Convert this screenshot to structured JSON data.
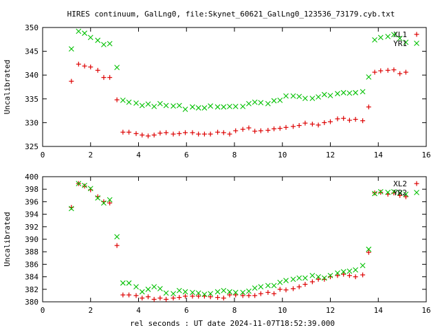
{
  "title": "HIRES continuum, GalLng0, file:Skynet_60621_GalLng0_123536_73179.cyb.txt",
  "xlabel": "rel seconds : UT date 2024-11-07T18:52:39.000",
  "colors": {
    "red": "#dd0000",
    "green": "#00c000"
  },
  "chart_data": [
    {
      "type": "scatter",
      "ylabel": "Uncalibrated",
      "xlim": [
        0,
        16
      ],
      "ylim": [
        325,
        350
      ],
      "xticks": [
        0,
        2,
        4,
        6,
        8,
        10,
        12,
        14,
        16
      ],
      "yticks": [
        325,
        330,
        335,
        340,
        345,
        350
      ],
      "legend_position": "top-right",
      "series": [
        {
          "name": "XL1",
          "marker": "plus",
          "color": "#dd0000",
          "x": [
            1.2,
            1.5,
            1.75,
            2.0,
            2.3,
            2.55,
            2.8,
            3.1,
            3.35,
            3.6,
            3.9,
            4.15,
            4.4,
            4.65,
            4.9,
            5.15,
            5.45,
            5.7,
            5.95,
            6.25,
            6.5,
            6.75,
            7.0,
            7.3,
            7.55,
            7.8,
            8.05,
            8.35,
            8.6,
            8.85,
            9.1,
            9.4,
            9.65,
            9.9,
            10.15,
            10.45,
            10.7,
            10.95,
            11.25,
            11.5,
            11.75,
            12.0,
            12.3,
            12.55,
            12.8,
            13.05,
            13.35,
            13.6,
            13.85,
            14.1,
            14.4,
            14.65,
            14.9,
            15.15
          ],
          "y": [
            338.7,
            342.3,
            341.9,
            341.7,
            341.0,
            339.5,
            339.5,
            334.8,
            328.0,
            328.0,
            327.7,
            327.4,
            327.2,
            327.4,
            327.8,
            327.9,
            327.6,
            327.7,
            327.9,
            327.9,
            327.6,
            327.6,
            327.6,
            328.0,
            327.9,
            327.6,
            328.3,
            328.6,
            328.9,
            328.2,
            328.3,
            328.4,
            328.7,
            328.8,
            329.0,
            329.2,
            329.4,
            329.9,
            329.7,
            329.5,
            330.0,
            330.2,
            330.8,
            330.9,
            330.5,
            330.7,
            330.4,
            333.3,
            340.6,
            340.9,
            341.0,
            341.1,
            340.3,
            340.6
          ]
        },
        {
          "name": "YR1",
          "marker": "cross",
          "color": "#00c000",
          "x": [
            1.2,
            1.5,
            1.75,
            2.0,
            2.3,
            2.55,
            2.8,
            3.1,
            3.35,
            3.6,
            3.9,
            4.15,
            4.4,
            4.65,
            4.9,
            5.15,
            5.45,
            5.7,
            5.95,
            6.25,
            6.5,
            6.75,
            7.0,
            7.3,
            7.55,
            7.8,
            8.05,
            8.35,
            8.6,
            8.85,
            9.1,
            9.4,
            9.65,
            9.9,
            10.15,
            10.45,
            10.7,
            10.95,
            11.25,
            11.5,
            11.75,
            12.0,
            12.3,
            12.55,
            12.8,
            13.05,
            13.35,
            13.6,
            13.85,
            14.1,
            14.4,
            14.65,
            14.9,
            15.15
          ],
          "y": [
            345.5,
            349.2,
            348.8,
            347.9,
            347.3,
            346.4,
            346.6,
            341.6,
            334.7,
            334.3,
            334.1,
            333.6,
            333.9,
            333.4,
            334.0,
            333.6,
            333.5,
            333.6,
            332.8,
            333.3,
            333.1,
            333.1,
            333.5,
            333.3,
            333.3,
            333.4,
            333.4,
            333.4,
            334.0,
            334.3,
            334.2,
            334.0,
            334.6,
            334.7,
            335.6,
            335.6,
            335.5,
            335.1,
            335.1,
            335.4,
            335.9,
            335.7,
            336.1,
            336.3,
            336.2,
            336.3,
            336.5,
            339.6,
            347.4,
            347.9,
            348.1,
            348.5,
            347.7,
            346.9
          ]
        }
      ]
    },
    {
      "type": "scatter",
      "ylabel": "Uncalibrated",
      "xlim": [
        0,
        16
      ],
      "ylim": [
        380,
        400
      ],
      "xticks": [
        0,
        2,
        4,
        6,
        8,
        10,
        12,
        14,
        16
      ],
      "yticks": [
        380,
        382,
        384,
        386,
        388,
        390,
        392,
        394,
        396,
        398,
        400
      ],
      "legend_position": "top-right",
      "series": [
        {
          "name": "XL2",
          "marker": "plus",
          "color": "#dd0000",
          "x": [
            1.2,
            1.5,
            1.75,
            2.0,
            2.3,
            2.55,
            2.8,
            3.1,
            3.35,
            3.6,
            3.9,
            4.15,
            4.4,
            4.65,
            4.9,
            5.15,
            5.45,
            5.7,
            5.95,
            6.25,
            6.5,
            6.75,
            7.0,
            7.3,
            7.55,
            7.8,
            8.05,
            8.35,
            8.6,
            8.85,
            9.1,
            9.4,
            9.65,
            9.9,
            10.15,
            10.45,
            10.7,
            10.95,
            11.25,
            11.5,
            11.75,
            12.0,
            12.3,
            12.55,
            12.8,
            13.05,
            13.35,
            13.6,
            13.85,
            14.1,
            14.4,
            14.65,
            14.9,
            15.15
          ],
          "y": [
            395.1,
            398.9,
            398.5,
            397.9,
            396.8,
            396.0,
            395.8,
            389.0,
            381.1,
            381.1,
            381.0,
            380.6,
            380.8,
            380.4,
            380.6,
            380.4,
            380.6,
            380.7,
            380.9,
            380.9,
            380.9,
            380.9,
            380.8,
            380.7,
            380.6,
            381.1,
            381.1,
            381.0,
            381.0,
            381.0,
            381.3,
            381.5,
            381.3,
            382.0,
            381.9,
            382.1,
            382.4,
            382.8,
            383.2,
            383.6,
            383.6,
            384.0,
            384.2,
            384.4,
            384.2,
            384.0,
            384.3,
            387.9,
            397.4,
            397.5,
            397.2,
            397.4,
            397.0,
            396.8
          ]
        },
        {
          "name": "YR2",
          "marker": "cross",
          "color": "#00c000",
          "x": [
            1.2,
            1.5,
            1.75,
            2.0,
            2.3,
            2.55,
            2.8,
            3.1,
            3.35,
            3.6,
            3.9,
            4.15,
            4.4,
            4.65,
            4.9,
            5.15,
            5.45,
            5.7,
            5.95,
            6.25,
            6.5,
            6.75,
            7.0,
            7.3,
            7.55,
            7.8,
            8.05,
            8.35,
            8.6,
            8.85,
            9.1,
            9.4,
            9.65,
            9.9,
            10.15,
            10.45,
            10.7,
            10.95,
            11.25,
            11.5,
            11.75,
            12.0,
            12.3,
            12.55,
            12.8,
            13.05,
            13.35,
            13.6,
            13.85,
            14.1,
            14.4,
            14.65,
            14.9,
            15.15
          ],
          "y": [
            394.9,
            398.9,
            398.6,
            398.1,
            396.6,
            395.8,
            396.3,
            390.4,
            383.0,
            383.0,
            382.4,
            381.6,
            382.0,
            382.4,
            382.1,
            381.4,
            381.3,
            381.8,
            381.6,
            381.5,
            381.4,
            381.2,
            381.3,
            381.6,
            381.8,
            381.6,
            381.5,
            381.5,
            381.7,
            382.2,
            382.4,
            382.6,
            382.6,
            383.1,
            383.4,
            383.6,
            383.8,
            383.8,
            384.2,
            384.0,
            383.8,
            384.2,
            384.6,
            384.8,
            384.9,
            385.1,
            385.8,
            388.4,
            397.3,
            397.6,
            397.5,
            397.6,
            397.4,
            397.2
          ]
        }
      ]
    }
  ]
}
